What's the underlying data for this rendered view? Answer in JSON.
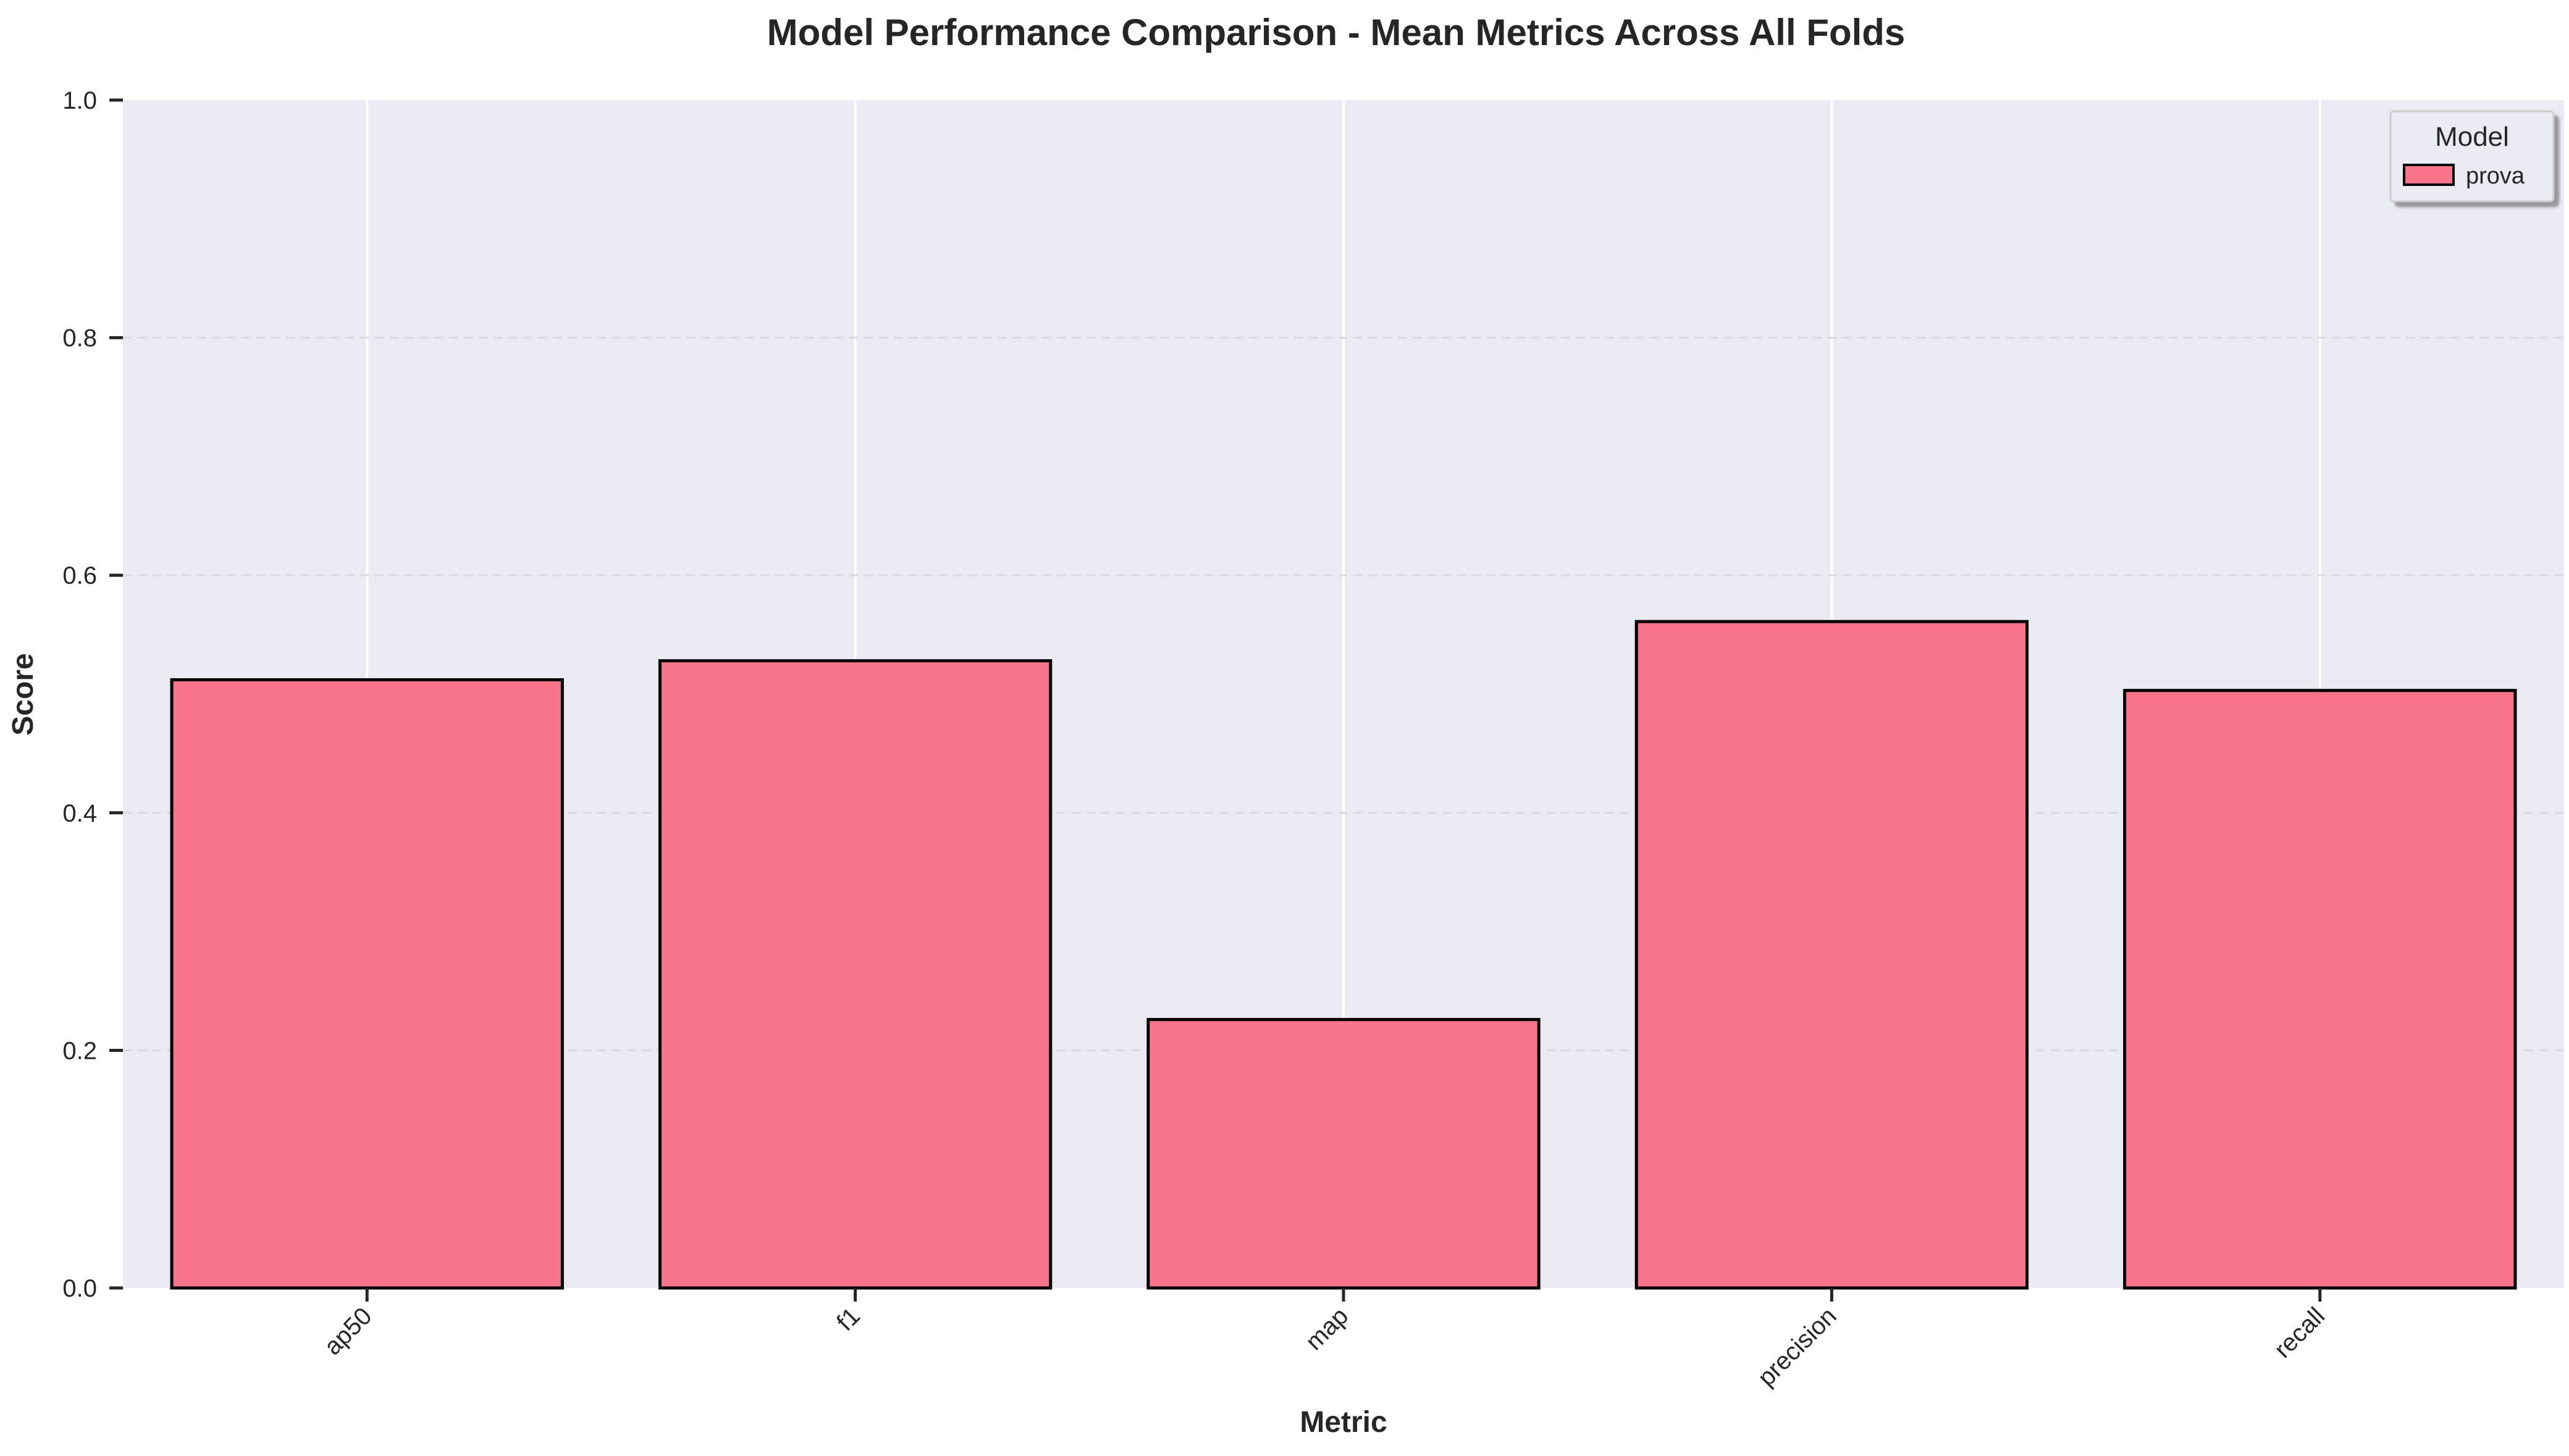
{
  "chart_data": {
    "type": "bar",
    "title": "Model Performance Comparison - Mean Metrics Across All Folds",
    "xlabel": "Metric",
    "ylabel": "Score",
    "categories": [
      "ap50",
      "f1",
      "map",
      "precision",
      "recall"
    ],
    "series": [
      {
        "name": "prova",
        "values": [
          0.512,
          0.528,
          0.226,
          0.561,
          0.503
        ]
      }
    ],
    "ylim": [
      0.0,
      1.0
    ],
    "yticks": [
      "0.0",
      "0.2",
      "0.4",
      "0.6",
      "0.8",
      "1.0"
    ],
    "grid": true,
    "legend": {
      "title": "Model",
      "placement": "top-right"
    },
    "colors": {
      "bar": "#f7748a",
      "bar_edge": "#000000",
      "plot_background": "#eaeaf2",
      "grid": "#ffffff",
      "text": "#262626"
    }
  }
}
